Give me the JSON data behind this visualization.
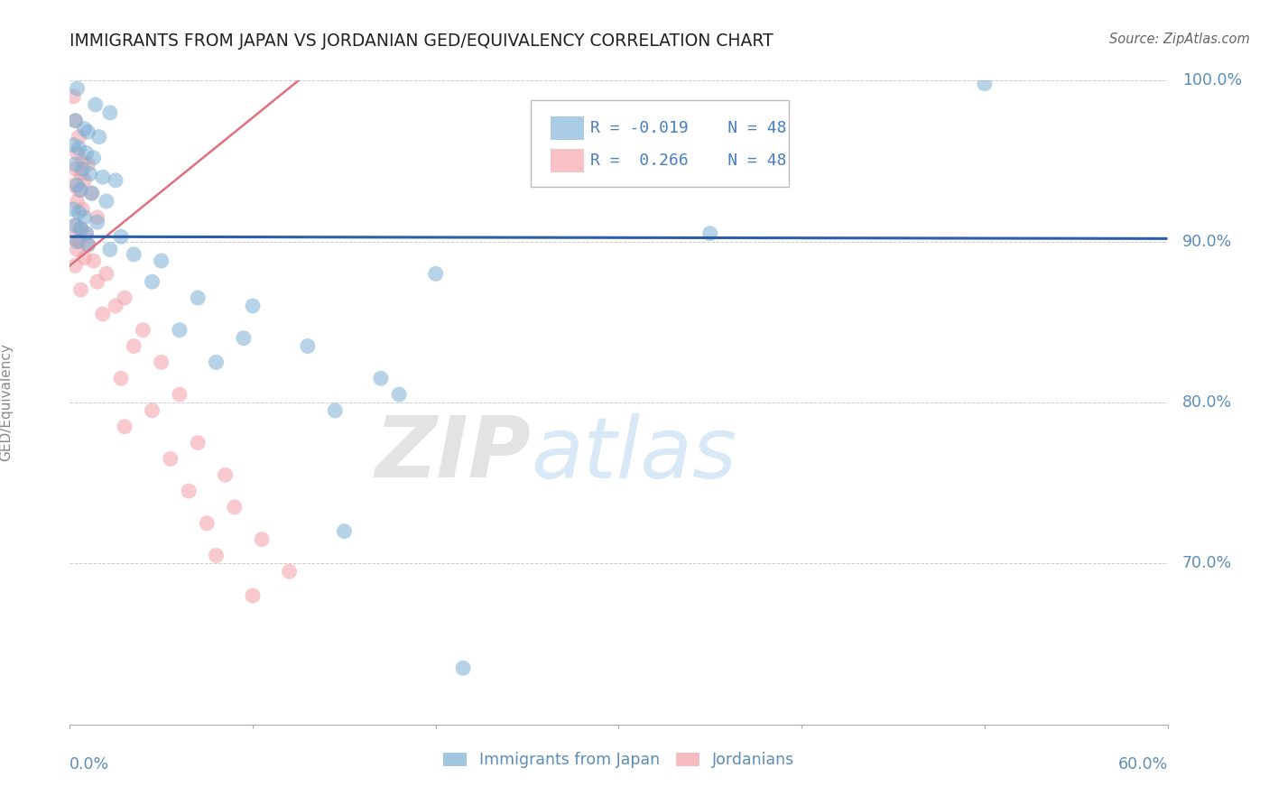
{
  "title": "IMMIGRANTS FROM JAPAN VS JORDANIAN GED/EQUIVALENCY CORRELATION CHART",
  "source": "Source: ZipAtlas.com",
  "ylabel": "GED/Equivalency",
  "xlim": [
    0.0,
    60.0
  ],
  "ylim": [
    60.0,
    100.0
  ],
  "yticks": [
    70.0,
    80.0,
    90.0,
    100.0
  ],
  "xticks": [
    0.0,
    10.0,
    20.0,
    30.0,
    40.0,
    50.0,
    60.0
  ],
  "blue_R": -0.019,
  "pink_R": 0.266,
  "N": 48,
  "blue_color": "#7BAFD4",
  "pink_color": "#F4A0A8",
  "blue_scatter": [
    [
      0.4,
      99.5
    ],
    [
      1.4,
      98.5
    ],
    [
      2.2,
      98.0
    ],
    [
      0.3,
      97.5
    ],
    [
      0.8,
      97.0
    ],
    [
      1.0,
      96.8
    ],
    [
      1.6,
      96.5
    ],
    [
      0.2,
      96.0
    ],
    [
      0.5,
      95.8
    ],
    [
      0.9,
      95.5
    ],
    [
      1.3,
      95.2
    ],
    [
      0.3,
      94.8
    ],
    [
      0.7,
      94.5
    ],
    [
      1.1,
      94.2
    ],
    [
      1.8,
      94.0
    ],
    [
      2.5,
      93.8
    ],
    [
      0.4,
      93.5
    ],
    [
      0.6,
      93.2
    ],
    [
      1.2,
      93.0
    ],
    [
      2.0,
      92.5
    ],
    [
      0.2,
      92.0
    ],
    [
      0.5,
      91.8
    ],
    [
      0.8,
      91.5
    ],
    [
      1.5,
      91.2
    ],
    [
      0.3,
      91.0
    ],
    [
      0.6,
      90.8
    ],
    [
      0.9,
      90.5
    ],
    [
      2.8,
      90.3
    ],
    [
      0.4,
      90.0
    ],
    [
      1.0,
      89.8
    ],
    [
      2.2,
      89.5
    ],
    [
      3.5,
      89.2
    ],
    [
      5.0,
      88.8
    ],
    [
      4.5,
      87.5
    ],
    [
      7.0,
      86.5
    ],
    [
      10.0,
      86.0
    ],
    [
      6.0,
      84.5
    ],
    [
      9.5,
      84.0
    ],
    [
      13.0,
      83.5
    ],
    [
      8.0,
      82.5
    ],
    [
      20.0,
      88.0
    ],
    [
      35.0,
      90.5
    ],
    [
      50.0,
      99.8
    ],
    [
      17.0,
      81.5
    ],
    [
      18.0,
      80.5
    ],
    [
      14.5,
      79.5
    ],
    [
      21.5,
      63.5
    ],
    [
      15.0,
      72.0
    ]
  ],
  "pink_scatter": [
    [
      0.2,
      99.0
    ],
    [
      0.3,
      97.5
    ],
    [
      0.5,
      96.5
    ],
    [
      0.4,
      95.5
    ],
    [
      0.7,
      95.0
    ],
    [
      1.0,
      94.8
    ],
    [
      0.3,
      94.5
    ],
    [
      0.6,
      94.2
    ],
    [
      0.8,
      93.8
    ],
    [
      0.2,
      93.5
    ],
    [
      0.5,
      93.2
    ],
    [
      1.2,
      93.0
    ],
    [
      0.4,
      92.5
    ],
    [
      0.7,
      92.0
    ],
    [
      1.5,
      91.5
    ],
    [
      0.3,
      91.0
    ],
    [
      0.6,
      90.8
    ],
    [
      0.9,
      90.5
    ],
    [
      0.2,
      90.2
    ],
    [
      0.5,
      90.0
    ],
    [
      1.0,
      89.8
    ],
    [
      0.4,
      89.5
    ],
    [
      0.8,
      89.0
    ],
    [
      1.3,
      88.8
    ],
    [
      0.3,
      88.5
    ],
    [
      2.0,
      88.0
    ],
    [
      1.5,
      87.5
    ],
    [
      0.6,
      87.0
    ],
    [
      3.0,
      86.5
    ],
    [
      2.5,
      86.0
    ],
    [
      1.8,
      85.5
    ],
    [
      4.0,
      84.5
    ],
    [
      3.5,
      83.5
    ],
    [
      5.0,
      82.5
    ],
    [
      2.8,
      81.5
    ],
    [
      6.0,
      80.5
    ],
    [
      4.5,
      79.5
    ],
    [
      3.0,
      78.5
    ],
    [
      7.0,
      77.5
    ],
    [
      5.5,
      76.5
    ],
    [
      8.5,
      75.5
    ],
    [
      6.5,
      74.5
    ],
    [
      9.0,
      73.5
    ],
    [
      7.5,
      72.5
    ],
    [
      10.5,
      71.5
    ],
    [
      8.0,
      70.5
    ],
    [
      12.0,
      69.5
    ],
    [
      10.0,
      68.0
    ]
  ],
  "blue_line_x": [
    0.0,
    60.0
  ],
  "blue_line_y": [
    90.3,
    90.18
  ],
  "pink_line_x": [
    0.0,
    12.5
  ],
  "pink_line_y": [
    88.5,
    100.0
  ],
  "watermark_zip": "ZIP",
  "watermark_atlas": "atlas",
  "background_color": "#FFFFFF",
  "grid_color": "#CCCCCC",
  "tick_label_color": "#5B8DB8",
  "title_color": "#222222",
  "legend_R_color": "#4A7FC1"
}
